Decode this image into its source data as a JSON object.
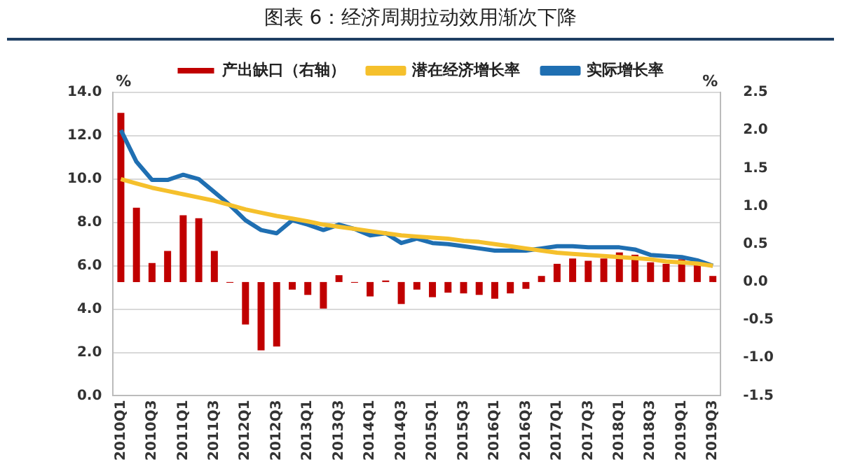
{
  "chart_data": {
    "type": "bar",
    "title": "图表 6：经济周期拉动效用渐次下降",
    "ylabel": "%",
    "y2label": "%",
    "categories": [
      "2010Q1",
      null,
      "2010Q3",
      null,
      "2011Q1",
      null,
      "2011Q3",
      null,
      "2012Q1",
      null,
      "2012Q3",
      null,
      "2013Q1",
      null,
      "2013Q3",
      null,
      "2014Q1",
      null,
      "2014Q3",
      null,
      "2015Q1",
      null,
      "2015Q3",
      null,
      "2016Q1",
      null,
      "2016Q3",
      null,
      "2017Q1",
      null,
      "2017Q3",
      null,
      "2018Q1",
      null,
      "2018Q3",
      null,
      "2019Q1",
      null,
      "2019Q3"
    ],
    "series": [
      {
        "name": "产出缺口（右轴）",
        "axis": "y2",
        "color": "#c00000",
        "values": [
          2.23,
          0.98,
          0.25,
          0.41,
          0.88,
          0.84,
          0.41,
          -0.01,
          -0.56,
          -0.9,
          -0.85,
          -0.1,
          -0.17,
          -0.35,
          0.09,
          -0.01,
          -0.19,
          0.02,
          -0.29,
          -0.1,
          -0.2,
          -0.14,
          -0.15,
          -0.17,
          -0.22,
          -0.15,
          -0.09,
          0.08,
          0.24,
          0.31,
          0.28,
          0.31,
          0.39,
          0.36,
          0.26,
          0.24,
          0.3,
          0.22,
          0.08
        ]
      },
      {
        "name": "潜在经济增长率",
        "type": "line",
        "color": "#f5c02c",
        "values": [
          10.0,
          9.8,
          9.6,
          9.45,
          9.3,
          9.15,
          9.0,
          8.8,
          8.6,
          8.45,
          8.3,
          8.18,
          8.05,
          7.9,
          7.8,
          7.7,
          7.6,
          7.5,
          7.4,
          7.35,
          7.3,
          7.25,
          7.15,
          7.1,
          7.0,
          6.9,
          6.8,
          6.7,
          6.6,
          6.55,
          6.5,
          6.45,
          6.4,
          6.35,
          6.3,
          6.2,
          6.15,
          6.1,
          6.0
        ]
      },
      {
        "name": "实际增长率",
        "type": "line",
        "color": "#1f6fb2",
        "values": [
          12.26,
          10.8,
          9.96,
          9.96,
          10.2,
          10.0,
          9.4,
          8.8,
          8.1,
          7.65,
          7.5,
          8.1,
          7.9,
          7.65,
          7.9,
          7.7,
          7.4,
          7.5,
          7.05,
          7.25,
          7.05,
          7.0,
          6.9,
          6.8,
          6.7,
          6.7,
          6.7,
          6.8,
          6.9,
          6.9,
          6.85,
          6.85,
          6.85,
          6.75,
          6.5,
          6.45,
          6.4,
          6.25,
          6.0
        ]
      }
    ],
    "ylim": [
      0,
      14
    ],
    "yticks": [
      {
        "value": 0,
        "label": "0.0"
      },
      {
        "value": 2,
        "label": "2.0"
      },
      {
        "value": 4,
        "label": "4.0"
      },
      {
        "value": 6,
        "label": "6.0"
      },
      {
        "value": 8,
        "label": "8.0"
      },
      {
        "value": 10,
        "label": "10.0"
      },
      {
        "value": 12,
        "label": "12.0"
      },
      {
        "value": 14,
        "label": "14.0"
      }
    ],
    "y2lim": [
      -1.5,
      2.5
    ],
    "y2ticks": [
      {
        "value": -1.5,
        "label": "-1.5"
      },
      {
        "value": -1,
        "label": "-1.0"
      },
      {
        "value": -0.5,
        "label": "-0.5"
      },
      {
        "value": 0,
        "label": "0.0"
      },
      {
        "value": 0.5,
        "label": "0.5"
      },
      {
        "value": 1,
        "label": "1.0"
      },
      {
        "value": 1.5,
        "label": "1.5"
      },
      {
        "value": 2,
        "label": "2.0"
      },
      {
        "value": 2.5,
        "label": "2.5"
      }
    ],
    "grid": "y",
    "legend": "top",
    "marker": "none",
    "line_style": "solid"
  }
}
